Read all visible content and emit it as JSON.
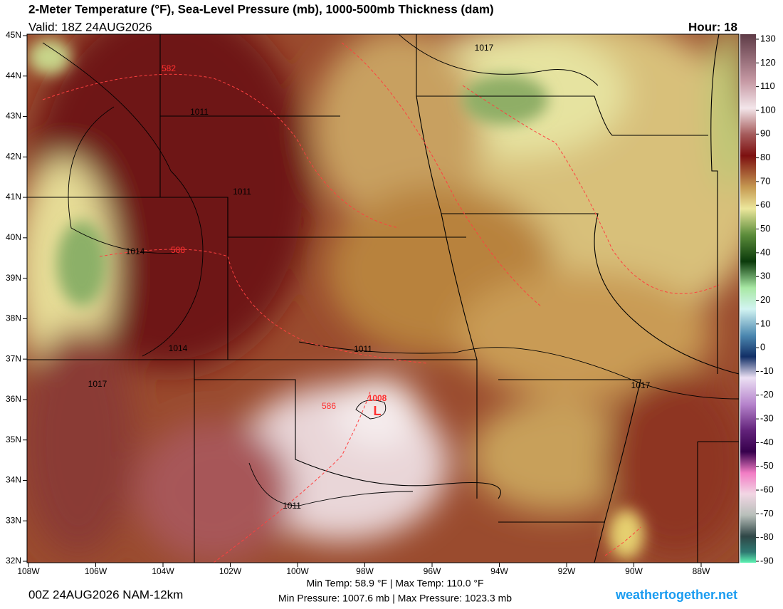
{
  "header": {
    "title": "2-Meter Temperature (°F), Sea-Level Pressure (mb), 1000-500mb Thickness (dam)",
    "valid": "Valid: 18Z 24AUG2026",
    "hour": "Hour: 18"
  },
  "map": {
    "lat_labels": [
      "45N",
      "44N",
      "43N",
      "42N",
      "41N",
      "40N",
      "39N",
      "38N",
      "37N",
      "36N",
      "35N",
      "34N",
      "33N",
      "32N"
    ],
    "lon_labels": [
      "108W",
      "106W",
      "104W",
      "102W",
      "100W",
      "98W",
      "96W",
      "94W",
      "92W",
      "90W",
      "88W"
    ],
    "isobar_labels": [
      1017,
      1011,
      1011,
      1014,
      1014,
      1011,
      1017,
      1017,
      1011,
      1008
    ],
    "thickness_labels": [
      582,
      588,
      586
    ],
    "low_label": "L"
  },
  "colorbar": {
    "ticks": [
      130,
      120,
      110,
      100,
      90,
      80,
      70,
      60,
      50,
      40,
      30,
      20,
      10,
      0,
      -10,
      -20,
      -30,
      -40,
      -50,
      -60,
      -70,
      -80,
      -90
    ]
  },
  "footer": {
    "run": "00Z 24AUG2026 NAM-12km",
    "temps": "Min Temp:  58.9 °F | Max Temp: 110.0 °F",
    "pressures": "Min Pressure: 1007.6 mb | Max Pressure: 1023.3 mb",
    "site": "weathertogether.net"
  }
}
